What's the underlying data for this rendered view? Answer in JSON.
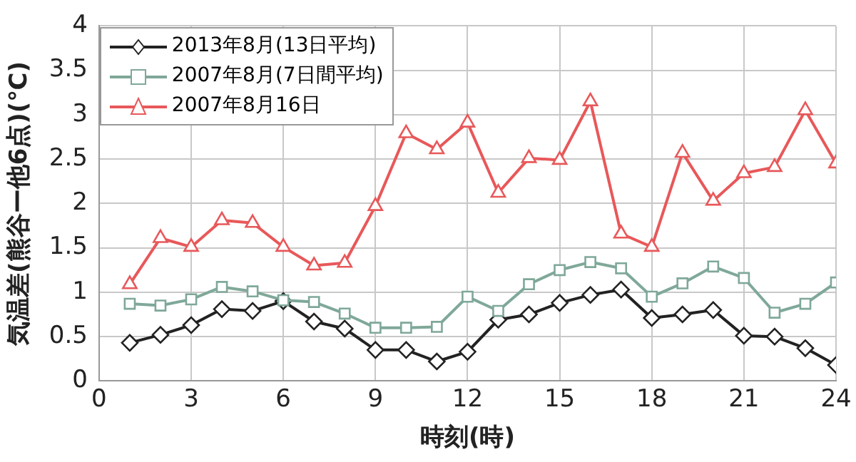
{
  "chart_data": {
    "type": "line",
    "xlabel": "時刻(時)",
    "ylabel": "気温差(熊谷ー他6点)(℃)",
    "x": [
      1,
      2,
      3,
      4,
      5,
      6,
      7,
      8,
      9,
      10,
      11,
      12,
      13,
      14,
      15,
      16,
      17,
      18,
      19,
      20,
      21,
      22,
      23,
      24
    ],
    "xlim": [
      0,
      24
    ],
    "xticks": [
      0,
      3,
      6,
      9,
      12,
      15,
      18,
      21,
      24
    ],
    "ylim": [
      0,
      4
    ],
    "yticks": [
      0,
      0.5,
      1,
      1.5,
      2,
      2.5,
      3,
      3.5,
      4
    ],
    "grid": true,
    "legend": "top left",
    "line_style": "solid",
    "series": [
      {
        "name": "2013年8月(13日平均)",
        "color": "#222222",
        "marker": "diamond",
        "values": [
          0.43,
          0.52,
          0.63,
          0.81,
          0.79,
          0.9,
          0.67,
          0.59,
          0.35,
          0.35,
          0.22,
          0.33,
          0.69,
          0.75,
          0.88,
          0.97,
          1.03,
          0.71,
          0.75,
          0.8,
          0.51,
          0.5,
          0.37,
          0.18
        ]
      },
      {
        "name": "2007年8月(7日間平均)",
        "color": "#7fa898",
        "marker": "square",
        "values": [
          0.87,
          0.85,
          0.92,
          1.06,
          1.01,
          0.91,
          0.89,
          0.76,
          0.6,
          0.6,
          0.61,
          0.95,
          0.79,
          1.09,
          1.25,
          1.34,
          1.27,
          0.95,
          1.1,
          1.29,
          1.16,
          0.77,
          0.87,
          1.11
        ]
      },
      {
        "name": "2007年8月16日",
        "color": "#e8585a",
        "marker": "triangle",
        "values": [
          1.09,
          1.61,
          1.51,
          1.81,
          1.78,
          1.51,
          1.3,
          1.33,
          1.97,
          2.79,
          2.61,
          2.91,
          2.12,
          2.51,
          2.49,
          3.15,
          1.66,
          1.51,
          2.57,
          2.03,
          2.34,
          2.41,
          3.05,
          2.45
        ]
      }
    ]
  }
}
